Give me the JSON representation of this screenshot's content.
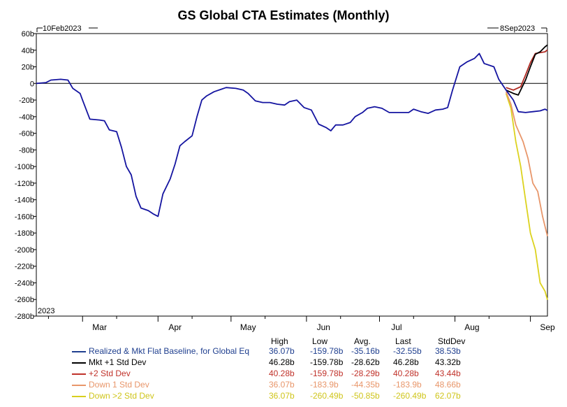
{
  "title": "GS Global CTA Estimates (Monthly)",
  "date_start": "10Feb2023",
  "date_end": "8Sep2023",
  "year_label": "2023",
  "legend_headers": [
    "High",
    "Low",
    "Avg.",
    "Last",
    "StdDev"
  ],
  "legend_rows": [
    {
      "name": "Realized & Mkt Flat Baseline, for Global Eq",
      "color": "#1f3f8f",
      "values": [
        "36.07b",
        "-159.78b",
        "-35.16b",
        "-32.55b",
        "38.53b"
      ]
    },
    {
      "name": "Mkt +1 Std Dev",
      "color": "#000000",
      "values": [
        "46.28b",
        "-159.78b",
        "-28.62b",
        "46.28b",
        "43.32b"
      ]
    },
    {
      "name": "+2 Std Dev",
      "color": "#c0322a",
      "values": [
        "40.28b",
        "-159.78b",
        "-28.29b",
        "40.28b",
        "43.44b"
      ]
    },
    {
      "name": "Down 1 Std Dev",
      "color": "#e8966a",
      "values": [
        "36.07b",
        "-183.9b",
        "-44.35b",
        "-183.9b",
        "48.66b"
      ]
    },
    {
      "name": "Down >2 Std Dev",
      "color": "#d8cf1e",
      "values": [
        "36.07b",
        "-260.49b",
        "-50.85b",
        "-260.49b",
        "62.07b"
      ]
    }
  ],
  "chart_data": {
    "type": "line",
    "title": "GS Global CTA Estimates (Monthly)",
    "x_range": [
      "2023-02-10",
      "2023-09-08"
    ],
    "y_range": [
      -280,
      60
    ],
    "y_ticks": [
      "60b",
      "40b",
      "20b",
      "0",
      "-20b",
      "-40b",
      "-60b",
      "-80b",
      "-100b",
      "-120b",
      "-140b",
      "-160b",
      "-180b",
      "-200b",
      "-220b",
      "-240b",
      "-260b",
      "-280b"
    ],
    "x_ticks": [
      "Mar",
      "Apr",
      "May",
      "Jun",
      "Jul",
      "Aug",
      "Sep"
    ],
    "zero_line": true,
    "colors": [
      "#1414a0",
      "#000000",
      "#b02a22",
      "#e8966a",
      "#dcd21e"
    ],
    "series": [
      {
        "name": "Realized & Mkt Flat Baseline, for Global Eq",
        "points": [
          [
            "2023-02-10",
            0
          ],
          [
            "2023-02-14",
            1
          ],
          [
            "2023-02-16",
            4
          ],
          [
            "2023-02-20",
            5
          ],
          [
            "2023-02-23",
            4
          ],
          [
            "2023-02-25",
            -6
          ],
          [
            "2023-02-28",
            -12
          ],
          [
            "2023-03-01",
            -20
          ],
          [
            "2023-03-04",
            -43
          ],
          [
            "2023-03-08",
            -44
          ],
          [
            "2023-03-10",
            -45
          ],
          [
            "2023-03-12",
            -56
          ],
          [
            "2023-03-15",
            -58
          ],
          [
            "2023-03-17",
            -77
          ],
          [
            "2023-03-19",
            -100
          ],
          [
            "2023-03-21",
            -110
          ],
          [
            "2023-03-23",
            -136
          ],
          [
            "2023-03-25",
            -150
          ],
          [
            "2023-03-28",
            -153
          ],
          [
            "2023-03-30",
            -157
          ],
          [
            "2023-04-01",
            -160
          ],
          [
            "2023-04-03",
            -133
          ],
          [
            "2023-04-06",
            -115
          ],
          [
            "2023-04-08",
            -97
          ],
          [
            "2023-04-10",
            -75
          ],
          [
            "2023-04-12",
            -70
          ],
          [
            "2023-04-15",
            -63
          ],
          [
            "2023-04-17",
            -40
          ],
          [
            "2023-04-19",
            -20
          ],
          [
            "2023-04-21",
            -15
          ],
          [
            "2023-04-24",
            -10
          ],
          [
            "2023-04-27",
            -7
          ],
          [
            "2023-04-29",
            -5
          ],
          [
            "2023-05-03",
            -6
          ],
          [
            "2023-05-06",
            -8
          ],
          [
            "2023-05-08",
            -12
          ],
          [
            "2023-05-11",
            -21
          ],
          [
            "2023-05-14",
            -23
          ],
          [
            "2023-05-17",
            -23
          ],
          [
            "2023-05-20",
            -25
          ],
          [
            "2023-05-23",
            -26
          ],
          [
            "2023-05-25",
            -22
          ],
          [
            "2023-05-28",
            -20
          ],
          [
            "2023-05-31",
            -29
          ],
          [
            "2023-06-03",
            -32
          ],
          [
            "2023-06-06",
            -49
          ],
          [
            "2023-06-09",
            -53
          ],
          [
            "2023-06-11",
            -57
          ],
          [
            "2023-06-13",
            -50
          ],
          [
            "2023-06-16",
            -50
          ],
          [
            "2023-06-19",
            -47
          ],
          [
            "2023-06-21",
            -40
          ],
          [
            "2023-06-24",
            -35
          ],
          [
            "2023-06-26",
            -30
          ],
          [
            "2023-06-29",
            -28
          ],
          [
            "2023-07-02",
            -30
          ],
          [
            "2023-07-05",
            -35
          ],
          [
            "2023-07-09",
            -35
          ],
          [
            "2023-07-13",
            -35
          ],
          [
            "2023-07-15",
            -31
          ],
          [
            "2023-07-18",
            -34
          ],
          [
            "2023-07-21",
            -36
          ],
          [
            "2023-07-24",
            -32
          ],
          [
            "2023-07-27",
            -31
          ],
          [
            "2023-07-29",
            -29
          ],
          [
            "2023-07-31",
            -8
          ],
          [
            "2023-08-03",
            20
          ],
          [
            "2023-08-06",
            26
          ],
          [
            "2023-08-09",
            30
          ],
          [
            "2023-08-11",
            36
          ],
          [
            "2023-08-13",
            24
          ],
          [
            "2023-08-17",
            20
          ],
          [
            "2023-08-19",
            5
          ],
          [
            "2023-08-22",
            -8
          ],
          [
            "2023-08-25",
            -20
          ],
          [
            "2023-08-27",
            -34
          ],
          [
            "2023-08-30",
            -35
          ],
          [
            "2023-09-02",
            -34
          ],
          [
            "2023-09-05",
            -33
          ],
          [
            "2023-09-07",
            -31
          ],
          [
            "2023-09-08",
            -32.55
          ]
        ]
      },
      {
        "name": "Mkt +1 Std Dev",
        "points": [
          [
            "2023-08-22",
            -8
          ],
          [
            "2023-08-25",
            -12
          ],
          [
            "2023-08-27",
            -14
          ],
          [
            "2023-08-30",
            4
          ],
          [
            "2023-09-01",
            20
          ],
          [
            "2023-09-03",
            35
          ],
          [
            "2023-09-05",
            38
          ],
          [
            "2023-09-07",
            44
          ],
          [
            "2023-09-08",
            46.28
          ]
        ]
      },
      {
        "name": "+2 Std Dev",
        "points": [
          [
            "2023-08-22",
            -5
          ],
          [
            "2023-08-25",
            -8
          ],
          [
            "2023-08-28",
            -4
          ],
          [
            "2023-08-30",
            10
          ],
          [
            "2023-09-01",
            25
          ],
          [
            "2023-09-03",
            36
          ],
          [
            "2023-09-05",
            37
          ],
          [
            "2023-09-07",
            38
          ],
          [
            "2023-09-08",
            40.28
          ]
        ]
      },
      {
        "name": "Down 1 Std Dev",
        "points": [
          [
            "2023-08-22",
            -10
          ],
          [
            "2023-08-24",
            -25
          ],
          [
            "2023-08-26",
            -50
          ],
          [
            "2023-08-29",
            -70
          ],
          [
            "2023-08-31",
            -90
          ],
          [
            "2023-09-02",
            -120
          ],
          [
            "2023-09-04",
            -130
          ],
          [
            "2023-09-06",
            -160
          ],
          [
            "2023-09-07",
            -172
          ],
          [
            "2023-09-08",
            -183.9
          ]
        ]
      },
      {
        "name": "Down >2 Std Dev",
        "points": [
          [
            "2023-08-22",
            -12
          ],
          [
            "2023-08-24",
            -30
          ],
          [
            "2023-08-26",
            -70
          ],
          [
            "2023-08-28",
            -100
          ],
          [
            "2023-08-30",
            -140
          ],
          [
            "2023-09-01",
            -180
          ],
          [
            "2023-09-03",
            -200
          ],
          [
            "2023-09-05",
            -240
          ],
          [
            "2023-09-07",
            -250
          ],
          [
            "2023-09-08",
            -260.49
          ]
        ]
      }
    ]
  }
}
